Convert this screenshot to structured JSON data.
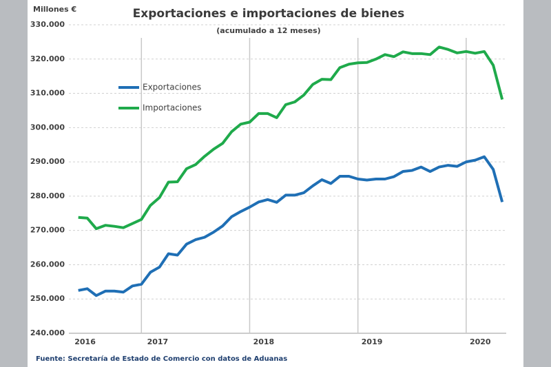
{
  "chart_data": {
    "type": "line",
    "title": "Exportaciones e importaciones de bienes",
    "subtitle": "(acumulado a 12 meses)",
    "y_axis_label": "Millones €",
    "source": "Fuente: Secretaría de Estado de Comercio con datos de Aduanas",
    "x": [
      2016.417,
      2016.5,
      2016.583,
      2016.667,
      2016.75,
      2016.833,
      2016.917,
      2017,
      2017.083,
      2017.167,
      2017.25,
      2017.333,
      2017.417,
      2017.5,
      2017.583,
      2017.667,
      2017.75,
      2017.833,
      2017.917,
      2018,
      2018.083,
      2018.167,
      2018.25,
      2018.333,
      2018.417,
      2018.5,
      2018.583,
      2018.667,
      2018.75,
      2018.833,
      2018.917,
      2019,
      2019.083,
      2019.167,
      2019.25,
      2019.333,
      2019.417,
      2019.5,
      2019.583,
      2019.667,
      2019.75,
      2019.833,
      2019.917,
      2020,
      2020.083,
      2020.167,
      2020.25,
      2020.333
    ],
    "series": [
      {
        "name": "Exportaciones",
        "color": "#1f6fb5",
        "values": [
          252500,
          253000,
          251000,
          252300,
          252300,
          252000,
          253800,
          254300,
          257800,
          259300,
          263200,
          262800,
          266000,
          267300,
          268000,
          269500,
          271300,
          274000,
          275500,
          276800,
          278300,
          279000,
          278200,
          280300,
          280300,
          281000,
          283000,
          284800,
          283700,
          285800,
          285800,
          285000,
          284700,
          285000,
          285000,
          285700,
          287200,
          287500,
          288500,
          287200,
          288500,
          289000,
          288700,
          290000,
          290500,
          291500,
          287800,
          278300
        ]
      },
      {
        "name": "Importaciones",
        "color": "#1faa4b",
        "values": [
          273800,
          273600,
          270500,
          271500,
          271200,
          270800,
          272000,
          273200,
          277300,
          279600,
          284100,
          284200,
          288000,
          289200,
          291600,
          293700,
          295400,
          298800,
          301000,
          301600,
          304100,
          304100,
          302900,
          306700,
          307500,
          309500,
          312600,
          314100,
          314000,
          317500,
          318500,
          318900,
          319000,
          320000,
          321300,
          320700,
          322100,
          321600,
          321600,
          321300,
          323500,
          322800,
          321800,
          322200,
          321700,
          322200,
          318200,
          308200
        ]
      }
    ],
    "xlim": [
      2016.33,
      2020.37
    ],
    "xticks": [
      {
        "value": 2016.48,
        "label": "2016"
      },
      {
        "value": 2017.15,
        "label": "2017"
      },
      {
        "value": 2018.13,
        "label": "2018"
      },
      {
        "value": 2019.13,
        "label": "2019"
      },
      {
        "value": 2020.13,
        "label": "2020"
      }
    ],
    "xgrid": [
      2017,
      2018,
      2019,
      2020
    ],
    "ylim": [
      240000,
      330000
    ],
    "yticks": [
      {
        "value": 240000,
        "label": "240.000"
      },
      {
        "value": 250000,
        "label": "250.000"
      },
      {
        "value": 260000,
        "label": "260.000"
      },
      {
        "value": 270000,
        "label": "270.000"
      },
      {
        "value": 280000,
        "label": "280.000"
      },
      {
        "value": 290000,
        "label": "290.000"
      },
      {
        "value": 300000,
        "label": "300.000"
      },
      {
        "value": 310000,
        "label": "310.000"
      },
      {
        "value": 320000,
        "label": "320.000"
      },
      {
        "value": 330000,
        "label": "330.000"
      }
    ],
    "grid": true
  }
}
